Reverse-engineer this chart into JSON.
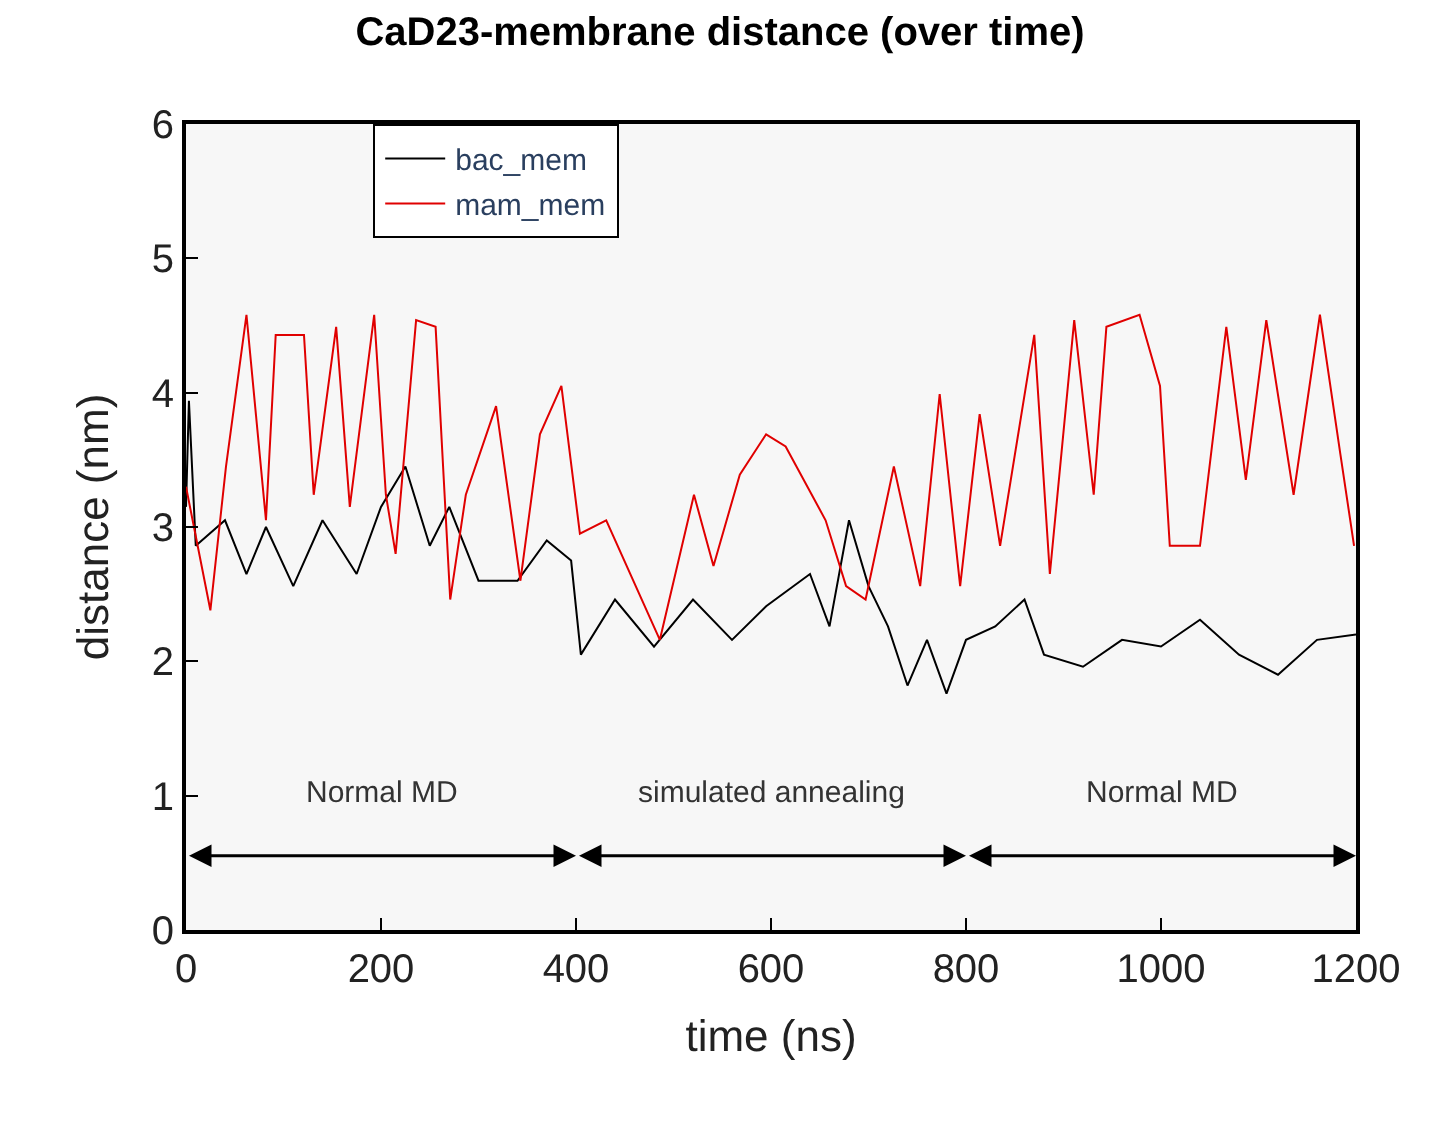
{
  "chart_data": {
    "type": "line",
    "title": "CaD23-membrane distance (over time)",
    "xlabel": "time (ns)",
    "ylabel": "distance (nm)",
    "xlim": [
      0,
      1200
    ],
    "xticks": [
      0,
      200,
      400,
      600,
      800,
      1000,
      1200
    ],
    "ylim": [
      0,
      6
    ],
    "yticks": [
      0,
      1,
      2,
      3,
      4,
      5,
      6
    ],
    "grid": false,
    "legend": "top left",
    "marker": "none",
    "line_style": "solid",
    "series": [
      {
        "name": "bac_mem",
        "color": "#000000",
        "x": [
          0,
          3,
          10,
          40,
          62,
          82,
          110,
          140,
          175,
          200,
          225,
          250,
          270,
          300,
          340,
          370,
          395,
          405,
          440,
          480,
          520,
          560,
          595,
          640,
          660,
          680,
          700,
          720,
          740,
          760,
          780,
          800,
          830,
          860,
          880,
          920,
          960,
          1000,
          1040,
          1080,
          1120,
          1160,
          1200
        ],
        "values": [
          3.15,
          3.94,
          2.86,
          3.05,
          2.65,
          3.0,
          2.56,
          3.05,
          2.65,
          3.15,
          3.45,
          2.86,
          3.15,
          2.6,
          2.6,
          2.9,
          2.75,
          2.05,
          2.46,
          2.11,
          2.46,
          2.16,
          2.41,
          2.65,
          2.26,
          3.05,
          2.56,
          2.26,
          1.82,
          2.16,
          1.76,
          2.16,
          2.26,
          2.46,
          2.05,
          1.96,
          2.16,
          2.11,
          2.31,
          2.05,
          1.9,
          2.16,
          2.2
        ]
      },
      {
        "name": "mam_mem",
        "color": "#e00000",
        "x": [
          0,
          25,
          41,
          62,
          82,
          92,
          121,
          131,
          154,
          168,
          193,
          205,
          215,
          236,
          256,
          271,
          287,
          318,
          343,
          363,
          385,
          404,
          431,
          486,
          521,
          541,
          568,
          595,
          615,
          656,
          677,
          697,
          726,
          753,
          773,
          794,
          814,
          835,
          870,
          886,
          911,
          931,
          944,
          978,
          999,
          1009,
          1040,
          1067,
          1087,
          1108,
          1136,
          1163,
          1184,
          1198
        ],
        "values": [
          3.3,
          2.38,
          3.45,
          4.58,
          3.05,
          4.43,
          4.43,
          3.24,
          4.49,
          3.15,
          4.58,
          3.24,
          2.8,
          4.54,
          4.49,
          2.46,
          3.24,
          3.9,
          2.6,
          3.69,
          4.05,
          2.95,
          3.05,
          2.16,
          3.24,
          2.71,
          3.39,
          3.69,
          3.6,
          3.05,
          2.56,
          2.46,
          3.45,
          2.56,
          3.99,
          2.56,
          3.84,
          2.86,
          4.43,
          2.65,
          4.54,
          3.24,
          4.49,
          4.58,
          4.05,
          2.86,
          2.86,
          4.49,
          3.35,
          4.54,
          3.24,
          4.58,
          3.54,
          2.86
        ]
      }
    ],
    "bands": [
      {
        "axis": "x",
        "from": 0,
        "to": 400,
        "label": "Normal MD",
        "color": "#000000"
      },
      {
        "axis": "x",
        "from": 400,
        "to": 800,
        "label": "simulated annealing",
        "color": "#000000"
      },
      {
        "axis": "x",
        "from": 800,
        "to": 1200,
        "label": "Normal MD",
        "color": "#000000"
      }
    ]
  }
}
